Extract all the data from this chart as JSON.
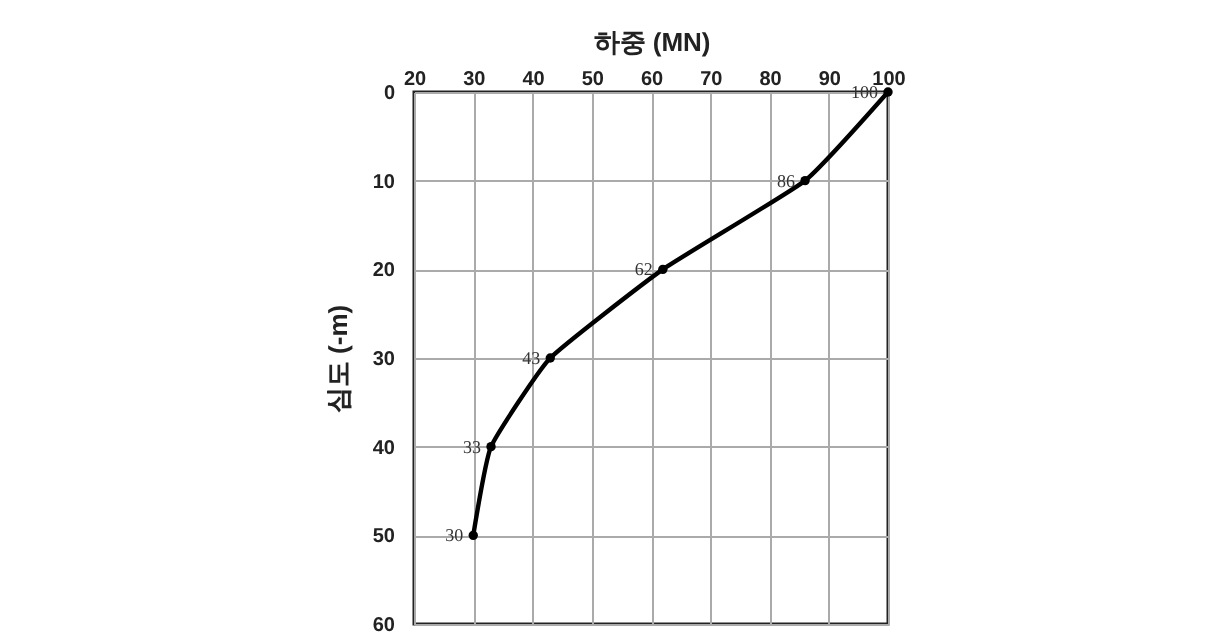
{
  "chart_data": {
    "type": "line",
    "xlabel": "하중 (MN)",
    "ylabel": "심도 (-m)",
    "xlim": [
      20,
      100
    ],
    "xticks": [
      20,
      30,
      40,
      50,
      60,
      70,
      80,
      90,
      100
    ],
    "ylim": [
      60,
      0
    ],
    "yticks": [
      0,
      10,
      20,
      30,
      40,
      50,
      60
    ],
    "grid": true,
    "marker": "circle",
    "line_style": "solid",
    "series": [
      {
        "color": "#000000",
        "x": [
          100,
          86,
          62,
          43,
          33,
          30
        ],
        "values": [
          0,
          10,
          20,
          30,
          40,
          50
        ]
      }
    ],
    "annotations": [
      {
        "text": "100",
        "x": 100,
        "y": 0
      },
      {
        "text": "86",
        "x": 86,
        "y": 10
      },
      {
        "text": "62",
        "x": 62,
        "y": 20
      },
      {
        "text": "43",
        "x": 43,
        "y": 30
      },
      {
        "text": "33",
        "x": 33,
        "y": 40
      },
      {
        "text": "30",
        "x": 30,
        "y": 50
      }
    ]
  }
}
